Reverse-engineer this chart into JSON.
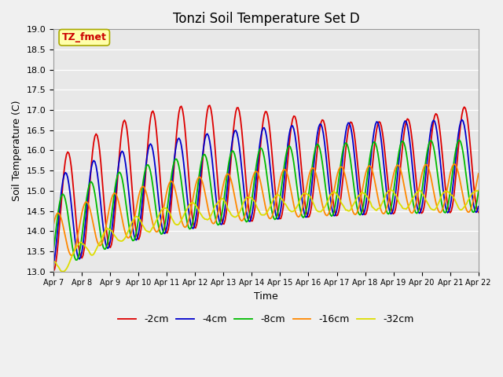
{
  "title": "Tonzi Soil Temperature Set D",
  "xlabel": "Time",
  "ylabel": "Soil Temperature (C)",
  "ylim": [
    13.0,
    19.0
  ],
  "yticks": [
    13.0,
    13.5,
    14.0,
    14.5,
    15.0,
    15.5,
    16.0,
    16.5,
    17.0,
    17.5,
    18.0,
    18.5,
    19.0
  ],
  "xtick_labels": [
    "Apr 7",
    "Apr 8",
    "Apr 9",
    "Apr 10",
    "Apr 11",
    "Apr 12",
    "Apr 13",
    "Apr 14",
    "Apr 15",
    "Apr 16",
    "Apr 17",
    "Apr 18",
    "Apr 19",
    "Apr 20",
    "Apr 21",
    "Apr 22"
  ],
  "legend_labels": [
    "-2cm",
    "-4cm",
    "-8cm",
    "-16cm",
    "-32cm"
  ],
  "legend_colors": [
    "#dd0000",
    "#0000cc",
    "#00bb00",
    "#ff8800",
    "#dddd00"
  ],
  "annotation_text": "TZ_fmet",
  "annotation_color": "#cc0000",
  "annotation_bg": "#ffffaa",
  "annotation_border": "#aaaa00",
  "fig_bg_color": "#f0f0f0",
  "plot_bg_color": "#e8e8e8",
  "title_fontsize": 12
}
